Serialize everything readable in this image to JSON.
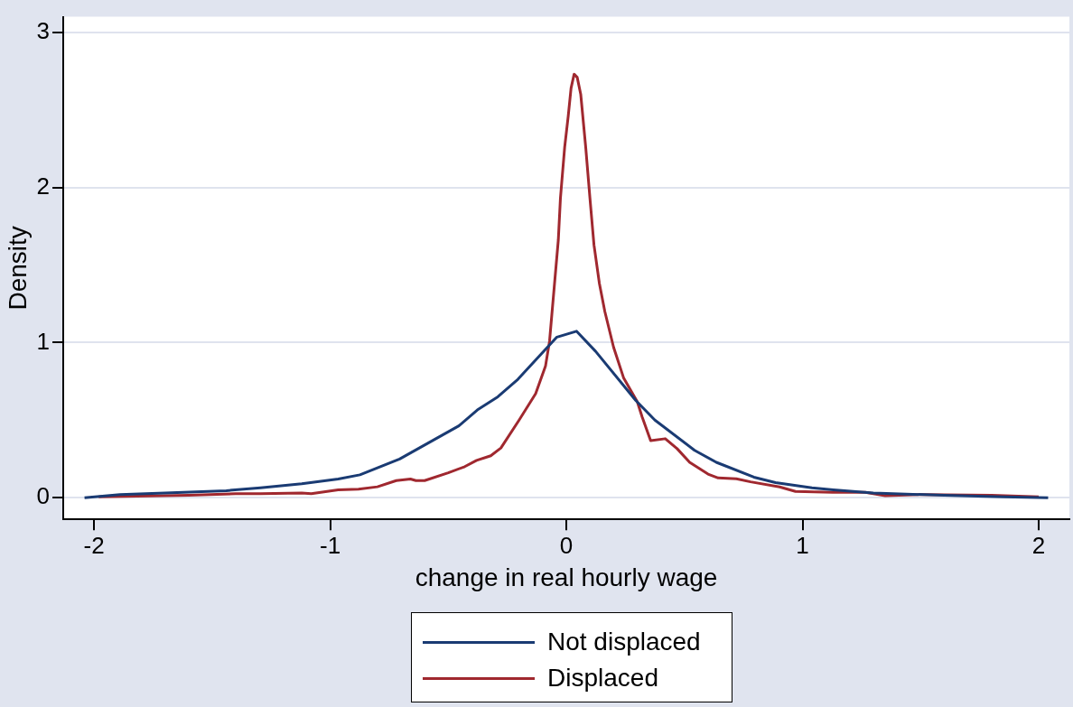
{
  "chart_data": {
    "type": "line",
    "xlabel": "change in real hourly wage",
    "ylabel": "Density",
    "xlim": [
      -2.13,
      2.13
    ],
    "ylim": [
      -0.14,
      3.1
    ],
    "xticks": [
      -2,
      -1,
      0,
      1,
      2
    ],
    "yticks": [
      0,
      1,
      2,
      3
    ],
    "grid": "y",
    "legend": "bottom",
    "marker": "none",
    "line_style": "solid",
    "series": [
      {
        "name": "Not displaced",
        "color": "#1a3b73",
        "x": [
          -2.04,
          -1.89,
          -1.7,
          -1.44,
          -1.295,
          -1.12,
          -0.966,
          -0.874,
          -0.706,
          -0.455,
          -0.377,
          -0.29,
          -0.205,
          -0.04,
          0.043,
          0.124,
          0.294,
          0.375,
          0.543,
          0.635,
          0.794,
          0.886,
          1.04,
          1.13,
          1.3,
          1.6,
          1.85,
          2.04
        ],
        "values": [
          0,
          0.02,
          0.03,
          0.045,
          0.064,
          0.09,
          0.12,
          0.147,
          0.249,
          0.463,
          0.565,
          0.65,
          0.763,
          1.035,
          1.073,
          0.943,
          0.627,
          0.5,
          0.305,
          0.228,
          0.132,
          0.097,
          0.064,
          0.051,
          0.03,
          0.015,
          0.005,
          0
        ]
      },
      {
        "name": "Displaced",
        "color": "#a0282f",
        "x": [
          -1.98,
          -1.6,
          -1.4,
          -1.295,
          -1.12,
          -1.08,
          -0.966,
          -0.88,
          -0.8,
          -0.72,
          -0.66,
          -0.637,
          -0.6,
          -0.5,
          -0.43,
          -0.38,
          -0.32,
          -0.277,
          -0.2,
          -0.13,
          -0.088,
          -0.071,
          -0.05,
          -0.034,
          -0.025,
          -0.007,
          0.008,
          0.02,
          0.033,
          0.046,
          0.061,
          0.082,
          0.1,
          0.117,
          0.14,
          0.163,
          0.2,
          0.243,
          0.3,
          0.321,
          0.357,
          0.419,
          0.469,
          0.522,
          0.6,
          0.643,
          0.72,
          0.78,
          0.903,
          0.97,
          1.128,
          1.266,
          1.35,
          1.5,
          1.8,
          2.0
        ],
        "values": [
          0.005,
          0.015,
          0.025,
          0.026,
          0.03,
          0.026,
          0.05,
          0.055,
          0.07,
          0.11,
          0.12,
          0.11,
          0.11,
          0.16,
          0.2,
          0.24,
          0.27,
          0.32,
          0.5,
          0.67,
          0.85,
          1.01,
          1.38,
          1.66,
          1.93,
          2.26,
          2.46,
          2.64,
          2.73,
          2.71,
          2.6,
          2.26,
          1.93,
          1.63,
          1.38,
          1.2,
          0.97,
          0.77,
          0.62,
          0.52,
          0.367,
          0.38,
          0.316,
          0.228,
          0.152,
          0.127,
          0.122,
          0.102,
          0.069,
          0.04,
          0.034,
          0.034,
          0.013,
          0.02,
          0.015,
          0.005
        ]
      }
    ]
  }
}
